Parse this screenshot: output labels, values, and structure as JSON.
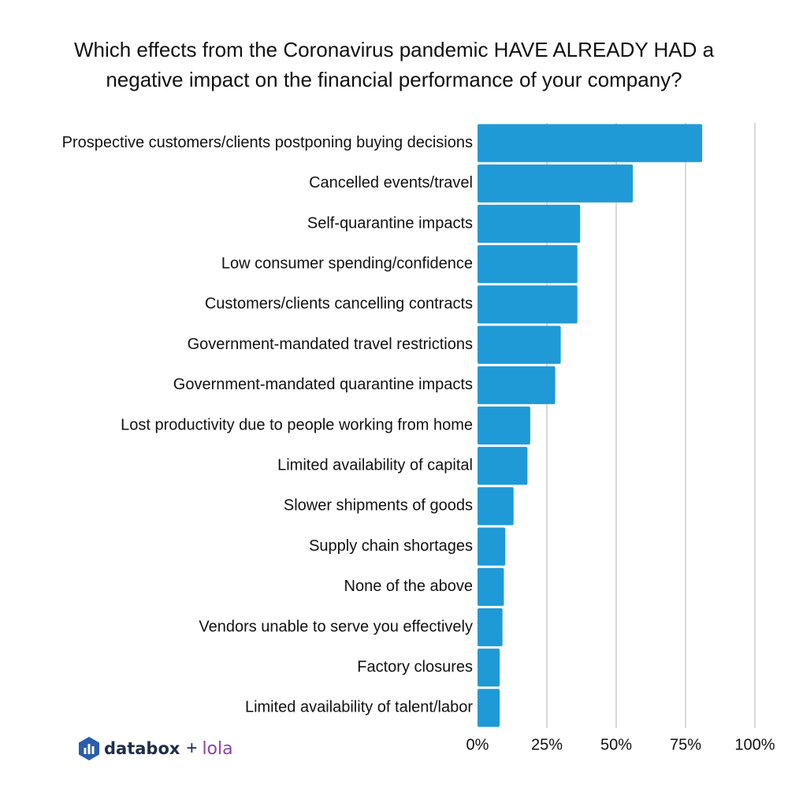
{
  "title_lines": [
    "Which effects from the Coronavirus pandemic HAVE ALREADY HAD a",
    "negative impact on the financial performance of your company?"
  ],
  "chart_data": {
    "type": "bar",
    "orientation": "horizontal",
    "title": "Which effects from the Coronavirus pandemic HAVE ALREADY HAD a negative impact on the financial performance of your company?",
    "xlabel": "",
    "ylabel": "",
    "categories": [
      "Prospective customers/clients postponing buying decisions",
      "Cancelled events/travel",
      "Self-quarantine impacts",
      "Low consumer spending/confidence",
      "Customers/clients cancelling contracts",
      "Government-mandated travel restrictions",
      "Government-mandated quarantine impacts",
      "Lost productivity due to people working from home",
      "Limited availability of capital",
      "Slower shipments of goods",
      "Supply chain shortages",
      "None of the above",
      "Vendors unable to serve you effectively",
      "Factory closures",
      "Limited availability of talent/labor"
    ],
    "values": [
      81,
      56,
      37,
      36,
      36,
      30,
      28,
      19,
      18,
      13,
      10,
      9.5,
      9,
      8,
      8
    ],
    "xlim": [
      0,
      100
    ],
    "x_ticks": [
      0,
      25,
      50,
      75,
      100
    ],
    "x_tick_labels": [
      "0%",
      "25%",
      "50%",
      "75%",
      "100%"
    ],
    "grid": true,
    "legend": "none",
    "bar_color": "#1f9ad6",
    "grid_color": "#cccccc"
  },
  "branding": {
    "name_a": "databox",
    "plus": "+",
    "name_b": "lola",
    "icon": "databox-logo-icon",
    "color_a": "#1f2d4a",
    "color_b": "#8a3fb0"
  }
}
